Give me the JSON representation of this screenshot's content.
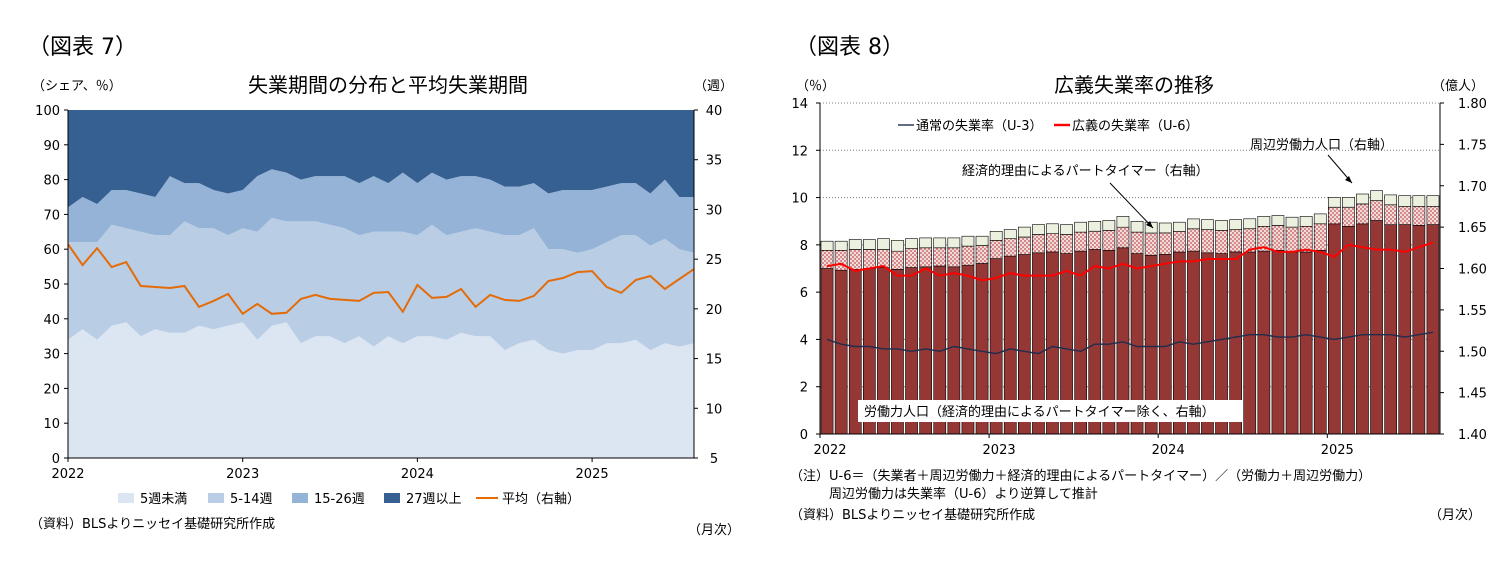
{
  "figures": [
    {
      "label": "（図表 7）",
      "notes": [],
      "source": "（資料）BLSよりニッセイ基礎研究所作成",
      "freq_label": "（月次）"
    },
    {
      "label": "（図表 8）",
      "notes": [
        "（注）U-6＝（失業者＋周辺労働力＋経済的理由によるパートタイマー）／（労働力＋周辺労働力）",
        "　　　周辺労働力は失業率（U-6）より逆算して推計"
      ],
      "source": "（資料）BLSよりニッセイ基礎研究所作成",
      "freq_label": "（月次）"
    }
  ],
  "chart_data": [
    {
      "type": "area",
      "title": "失業期間の分布と平均失業期間",
      "ylabel_left": "（シェア、％）",
      "ylabel_right": "（週）",
      "ylim_left": [
        0,
        100
      ],
      "yticks_left": [
        0,
        10,
        20,
        30,
        40,
        50,
        60,
        70,
        80,
        90,
        100
      ],
      "ylim_right": [
        5,
        40
      ],
      "yticks_right": [
        5,
        10,
        15,
        20,
        25,
        30,
        35,
        40
      ],
      "x_tick_labels": [
        "2022",
        "2023",
        "2024",
        "2025"
      ],
      "x": [
        "2022-01",
        "2022-02",
        "2022-03",
        "2022-04",
        "2022-05",
        "2022-06",
        "2022-07",
        "2022-08",
        "2022-09",
        "2022-10",
        "2022-11",
        "2022-12",
        "2023-01",
        "2023-02",
        "2023-03",
        "2023-04",
        "2023-05",
        "2023-06",
        "2023-07",
        "2023-08",
        "2023-09",
        "2023-10",
        "2023-11",
        "2023-12",
        "2024-01",
        "2024-02",
        "2024-03",
        "2024-04",
        "2024-05",
        "2024-06",
        "2024-07",
        "2024-08",
        "2024-09",
        "2024-10",
        "2024-11",
        "2024-12",
        "2025-01",
        "2025-02",
        "2025-03",
        "2025-04",
        "2025-05",
        "2025-06",
        "2025-07",
        "2025-08"
      ],
      "series": [
        {
          "name": "5週未満",
          "stack": true,
          "axis": "left",
          "color": "#dce6f2",
          "values": [
            34,
            37,
            34,
            38,
            39,
            35,
            37,
            36,
            36,
            38,
            37,
            38,
            39,
            34,
            38,
            39,
            33,
            35,
            35,
            33,
            35,
            32,
            35,
            33,
            35,
            35,
            34,
            36,
            35,
            35,
            31,
            33,
            34,
            31,
            30,
            31,
            31,
            33,
            33,
            34,
            31,
            33,
            32,
            33
          ]
        },
        {
          "name": "5-14週",
          "stack": true,
          "axis": "left",
          "color": "#b9cde5",
          "values": [
            28,
            25,
            28,
            29,
            27,
            30,
            27,
            28,
            32,
            28,
            29,
            26,
            27,
            31,
            31,
            29,
            35,
            33,
            32,
            33,
            29,
            33,
            30,
            32,
            29,
            32,
            30,
            29,
            31,
            30,
            33,
            31,
            32,
            29,
            30,
            28,
            29,
            29,
            31,
            30,
            30,
            30,
            28,
            26
          ]
        },
        {
          "name": "15-26週",
          "stack": true,
          "axis": "left",
          "color": "#95b3d7",
          "values": [
            10,
            13,
            11,
            10,
            11,
            11,
            11,
            17,
            11,
            13,
            11,
            12,
            11,
            16,
            14,
            14,
            12,
            13,
            14,
            15,
            15,
            16,
            14,
            17,
            15,
            15,
            16,
            16,
            15,
            15,
            14,
            14,
            13,
            16,
            17,
            18,
            17,
            16,
            15,
            15,
            15,
            17,
            15,
            16
          ]
        },
        {
          "name": "27週以上",
          "stack": true,
          "axis": "left",
          "color": "#376092",
          "values": [
            28,
            25,
            27,
            23,
            23,
            24,
            25,
            19,
            21,
            21,
            23,
            24,
            23,
            19,
            17,
            18,
            20,
            19,
            19,
            19,
            21,
            19,
            21,
            18,
            21,
            18,
            20,
            19,
            19,
            20,
            22,
            22,
            21,
            24,
            23,
            23,
            23,
            22,
            21,
            21,
            24,
            20,
            25,
            25
          ]
        },
        {
          "name": "平均（右軸）",
          "axis": "right",
          "color": "#e36c09",
          "values": [
            26.5,
            24.4,
            26.1,
            24.2,
            24.7,
            22.3,
            22.2,
            22.1,
            22.3,
            20.2,
            20.8,
            21.5,
            19.5,
            20.5,
            19.5,
            19.6,
            21.0,
            21.4,
            21.0,
            20.9,
            20.8,
            21.6,
            21.7,
            19.7,
            22.4,
            21.1,
            21.2,
            22.0,
            20.2,
            21.4,
            20.9,
            20.8,
            21.3,
            22.8,
            23.1,
            23.7,
            23.8,
            22.2,
            21.6,
            22.9,
            23.3,
            22.0,
            23.0,
            24.0
          ]
        }
      ],
      "legend": [
        "5週未満",
        "5-14週",
        "15-26週",
        "27週以上",
        "平均（右軸）"
      ],
      "legend_placement": "bottom",
      "grid": false
    },
    {
      "type": "bar",
      "title": "広義失業率の推移",
      "ylabel_left": "（％）",
      "ylabel_right": "（億人）",
      "ylim_left": [
        0,
        14
      ],
      "yticks_left": [
        0,
        2,
        4,
        6,
        8,
        10,
        12,
        14
      ],
      "ylim_right": [
        1.4,
        1.8
      ],
      "yticks_right": [
        "1.40",
        "1.45",
        "1.50",
        "1.55",
        "1.60",
        "1.65",
        "1.70",
        "1.75",
        "1.80"
      ],
      "x_tick_labels": [
        "2022",
        "2023",
        "2024",
        "2025"
      ],
      "x": [
        "2022-01",
        "2022-02",
        "2022-03",
        "2022-04",
        "2022-05",
        "2022-06",
        "2022-07",
        "2022-08",
        "2022-09",
        "2022-10",
        "2022-11",
        "2022-12",
        "2023-01",
        "2023-02",
        "2023-03",
        "2023-04",
        "2023-05",
        "2023-06",
        "2023-07",
        "2023-08",
        "2023-09",
        "2023-10",
        "2023-11",
        "2023-12",
        "2024-01",
        "2024-02",
        "2024-03",
        "2024-04",
        "2024-05",
        "2024-06",
        "2024-07",
        "2024-08",
        "2024-09",
        "2024-10",
        "2024-11",
        "2024-12",
        "2025-01",
        "2025-02",
        "2025-03",
        "2025-04",
        "2025-05",
        "2025-06",
        "2025-07",
        "2025-08"
      ],
      "series": [
        {
          "name": "労働力人口（経済的理由によるパートタイマー除く、右軸）",
          "stack": true,
          "axis": "right",
          "kind": "bar",
          "color": "#953735",
          "values": [
            1.6,
            1.598,
            1.599,
            1.6,
            1.601,
            1.599,
            1.601,
            1.602,
            1.603,
            1.602,
            1.604,
            1.606,
            1.612,
            1.615,
            1.617,
            1.619,
            1.62,
            1.618,
            1.621,
            1.623,
            1.622,
            1.625,
            1.618,
            1.616,
            1.617,
            1.62,
            1.621,
            1.619,
            1.618,
            1.62,
            1.62,
            1.621,
            1.622,
            1.62,
            1.62,
            1.622,
            1.654,
            1.651,
            1.654,
            1.658,
            1.653,
            1.653,
            1.652,
            1.653
          ]
        },
        {
          "name": "経済的理由によるパートタイマー（右軸）",
          "stack": true,
          "axis": "right",
          "kind": "bar",
          "color": "#e6b9b8",
          "values": [
            0.022,
            0.024,
            0.024,
            0.023,
            0.022,
            0.022,
            0.023,
            0.023,
            0.022,
            0.023,
            0.023,
            0.022,
            0.022,
            0.021,
            0.021,
            0.022,
            0.022,
            0.023,
            0.023,
            0.022,
            0.024,
            0.025,
            0.026,
            0.027,
            0.026,
            0.025,
            0.027,
            0.028,
            0.028,
            0.027,
            0.028,
            0.03,
            0.03,
            0.03,
            0.031,
            0.032,
            0.02,
            0.023,
            0.024,
            0.024,
            0.024,
            0.022,
            0.023,
            0.022
          ]
        },
        {
          "name": "周辺労働力人口（右軸）",
          "stack": true,
          "axis": "right",
          "kind": "bar",
          "color": "#ebf1de",
          "values": [
            0.011,
            0.011,
            0.012,
            0.012,
            0.013,
            0.013,
            0.012,
            0.012,
            0.012,
            0.012,
            0.012,
            0.011,
            0.011,
            0.011,
            0.012,
            0.012,
            0.012,
            0.012,
            0.012,
            0.012,
            0.012,
            0.013,
            0.013,
            0.013,
            0.012,
            0.011,
            0.012,
            0.012,
            0.012,
            0.012,
            0.012,
            0.012,
            0.012,
            0.012,
            0.012,
            0.012,
            0.012,
            0.012,
            0.012,
            0.012,
            0.012,
            0.013,
            0.013,
            0.013
          ]
        },
        {
          "name": "通常の失業率（U-3）",
          "axis": "left",
          "kind": "line",
          "color": "#1f2d4e",
          "values": [
            4.0,
            3.8,
            3.7,
            3.7,
            3.6,
            3.6,
            3.5,
            3.6,
            3.5,
            3.7,
            3.6,
            3.5,
            3.4,
            3.6,
            3.5,
            3.4,
            3.7,
            3.6,
            3.5,
            3.8,
            3.8,
            3.9,
            3.7,
            3.7,
            3.7,
            3.9,
            3.8,
            3.9,
            4.0,
            4.1,
            4.2,
            4.2,
            4.1,
            4.1,
            4.2,
            4.1,
            4.0,
            4.1,
            4.2,
            4.2,
            4.2,
            4.1,
            4.2,
            4.3
          ]
        },
        {
          "name": "広義の失業率（U-6）",
          "axis": "left",
          "kind": "line",
          "color": "#ff0000",
          "values": [
            7.1,
            7.2,
            6.9,
            7.0,
            7.1,
            6.7,
            6.7,
            7.0,
            6.7,
            6.8,
            6.7,
            6.5,
            6.6,
            6.8,
            6.7,
            6.7,
            6.7,
            6.9,
            6.7,
            7.1,
            7.0,
            7.2,
            7.0,
            7.1,
            7.2,
            7.3,
            7.3,
            7.4,
            7.4,
            7.4,
            7.8,
            7.9,
            7.7,
            7.7,
            7.8,
            7.7,
            7.5,
            8.0,
            7.9,
            7.8,
            7.8,
            7.7,
            7.9,
            8.1
          ]
        }
      ],
      "legend": [
        "通常の失業率（U-3）",
        "広義の失業率（U-6）"
      ],
      "annotations": [
        "周辺労働力人口（右軸）",
        "経済的理由によるパートタイマー（右軸）",
        "労働力人口（経済的理由によるパートタイマー除く、右軸）"
      ],
      "legend_placement": "top-left",
      "grid": true
    }
  ]
}
